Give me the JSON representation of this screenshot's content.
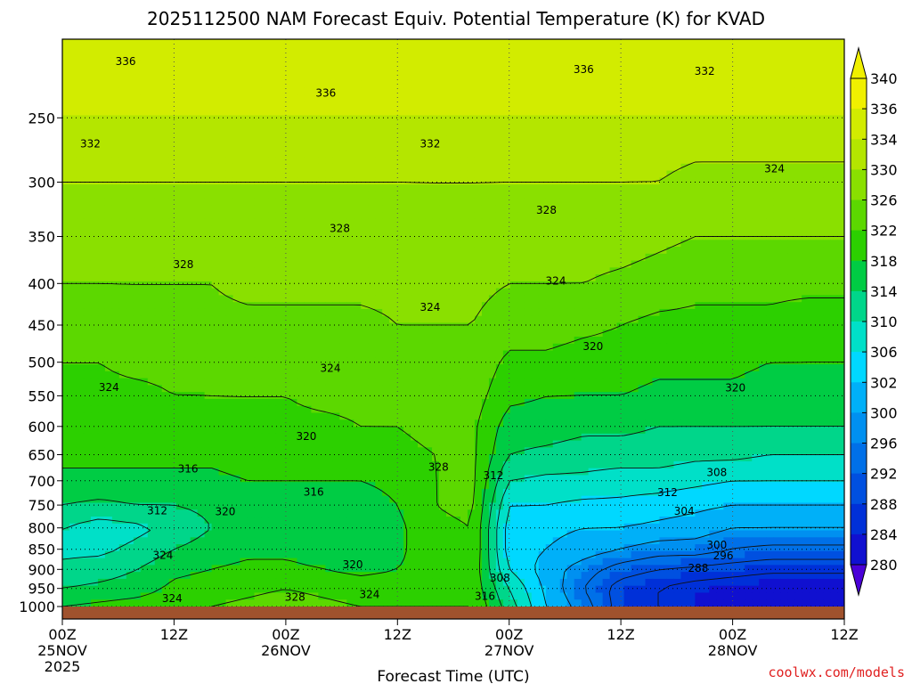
{
  "chart_data": {
    "type": "heatmap",
    "title": "2025112500 NAM Forecast Equiv. Potential Temperature (K) for KVAD",
    "xlabel": "Forecast Time (UTC)",
    "ylabel": "",
    "x_ticks": [
      {
        "h": 0,
        "line1": "00Z",
        "line2": "25NOV",
        "line3": "2025"
      },
      {
        "h": 12,
        "line1": "12Z",
        "line2": "",
        "line3": ""
      },
      {
        "h": 24,
        "line1": "00Z",
        "line2": "26NOV",
        "line3": ""
      },
      {
        "h": 36,
        "line1": "12Z",
        "line2": "",
        "line3": ""
      },
      {
        "h": 48,
        "line1": "00Z",
        "line2": "27NOV",
        "line3": ""
      },
      {
        "h": 60,
        "line1": "12Z",
        "line2": "",
        "line3": ""
      },
      {
        "h": 72,
        "line1": "00Z",
        "line2": "28NOV",
        "line3": ""
      },
      {
        "h": 84,
        "line1": "12Z",
        "line2": "",
        "line3": ""
      }
    ],
    "xlim_hours": [
      0,
      84
    ],
    "y_ticks": [
      "250",
      "300",
      "350",
      "400",
      "450",
      "500",
      "550",
      "600",
      "650",
      "700",
      "750",
      "800",
      "850",
      "900",
      "950",
      "1000"
    ],
    "ylim_hpa": [
      1000,
      200
    ],
    "y_scale": "log",
    "grid": true,
    "colorbar": {
      "ticks": [
        "340",
        "336",
        "334",
        "330",
        "326",
        "322",
        "318",
        "314",
        "310",
        "306",
        "302",
        "300",
        "296",
        "292",
        "288",
        "284",
        "280"
      ],
      "levels": [
        340,
        336,
        334,
        330,
        326,
        322,
        318,
        314,
        310,
        306,
        302,
        300,
        296,
        292,
        288,
        284,
        280
      ],
      "colors": [
        "#f0f000",
        "#d2ec00",
        "#b4e600",
        "#8ae000",
        "#5cd800",
        "#2cd000",
        "#00cc44",
        "#00d68a",
        "#00e0c8",
        "#00d8ff",
        "#00b0f8",
        "#0090f0",
        "#0070e8",
        "#0050e0",
        "#0030d8",
        "#1010d0",
        "#4a00d8"
      ]
    },
    "series": [
      {
        "h": 0,
        "values": [
          336,
          334,
          332,
          330,
          328,
          326,
          325,
          324,
          323,
          321,
          318,
          314,
          313,
          315,
          318,
          322
        ]
      },
      {
        "h": 4,
        "values": [
          336,
          334,
          332,
          330,
          328,
          326,
          325,
          324,
          323,
          321,
          317,
          312,
          313,
          316,
          319,
          323
        ]
      },
      {
        "h": 8,
        "values": [
          336,
          334,
          332,
          330,
          329,
          327,
          325,
          324,
          323,
          321,
          318,
          313,
          315,
          318,
          320,
          324
        ]
      },
      {
        "h": 12,
        "values": [
          336,
          334,
          332,
          330,
          329,
          327,
          326,
          324,
          323,
          321,
          318,
          315,
          318,
          321,
          323,
          325
        ]
      },
      {
        "h": 16,
        "values": [
          336,
          334,
          332,
          330,
          329,
          327,
          326,
          325,
          323,
          321,
          319,
          318,
          320,
          322,
          324,
          326
        ]
      },
      {
        "h": 20,
        "values": [
          336,
          334,
          332,
          331,
          329,
          328,
          326,
          325,
          324,
          322,
          320,
          319,
          321,
          323,
          325,
          327
        ]
      },
      {
        "h": 24,
        "values": [
          336,
          334,
          332,
          331,
          329,
          328,
          326,
          325,
          324,
          322,
          320,
          319,
          321,
          323,
          326,
          328
        ]
      },
      {
        "h": 28,
        "values": [
          336,
          334,
          332,
          331,
          329,
          328,
          327,
          325,
          324,
          322,
          320,
          319,
          320,
          322,
          325,
          327
        ]
      },
      {
        "h": 32,
        "values": [
          336,
          334,
          332,
          331,
          329,
          328,
          327,
          326,
          324,
          322,
          320,
          318,
          319,
          321,
          324,
          326
        ]
      },
      {
        "h": 36,
        "values": [
          336,
          334,
          332,
          331,
          330,
          329,
          328,
          326,
          325,
          323,
          322,
          321,
          321,
          322,
          324,
          326
        ]
      },
      {
        "h": 40,
        "values": [
          336,
          334,
          333,
          331,
          330,
          329,
          328,
          327,
          326,
          326,
          326,
          325,
          325,
          324,
          324,
          326
        ]
      },
      {
        "h": 44,
        "values": [
          336,
          334,
          333,
          331,
          330,
          329,
          328,
          327,
          327,
          327,
          327,
          326,
          326,
          325,
          325,
          326
        ]
      },
      {
        "h": 48,
        "values": [
          336,
          334,
          332,
          330,
          328,
          325,
          323,
          320,
          318,
          314,
          310,
          308,
          308,
          310,
          314,
          316
        ]
      },
      {
        "h": 52,
        "values": [
          336,
          334,
          332,
          330,
          328,
          325,
          322,
          320,
          317,
          313,
          310,
          307,
          306,
          304,
          305,
          306
        ]
      },
      {
        "h": 56,
        "values": [
          336,
          334,
          332,
          330,
          327,
          324,
          322,
          319,
          316,
          313,
          309,
          306,
          304,
          300,
          298,
          300
        ]
      },
      {
        "h": 60,
        "values": [
          336,
          334,
          332,
          329,
          326,
          324,
          322,
          319,
          316,
          312,
          309,
          306,
          302,
          296,
          292,
          292
        ]
      },
      {
        "h": 64,
        "values": [
          336,
          334,
          331,
          328,
          325,
          323,
          321,
          318,
          316,
          312,
          308,
          305,
          300,
          294,
          290,
          290
        ]
      },
      {
        "h": 68,
        "values": [
          336,
          333,
          330,
          327,
          325,
          323,
          321,
          318,
          315,
          311,
          307,
          304,
          300,
          293,
          288,
          288
        ]
      },
      {
        "h": 72,
        "values": [
          336,
          333,
          330,
          327,
          325,
          323,
          321,
          318,
          315,
          310,
          306,
          302,
          298,
          292,
          287,
          287
        ]
      },
      {
        "h": 76,
        "values": [
          336,
          333,
          330,
          327,
          325,
          322,
          320,
          318,
          314,
          310,
          306,
          302,
          297,
          291,
          286,
          286
        ]
      },
      {
        "h": 80,
        "values": [
          336,
          333,
          330,
          327,
          324,
          322,
          320,
          318,
          314,
          310,
          306,
          302,
          297,
          291,
          286,
          286
        ]
      },
      {
        "h": 84,
        "values": [
          336,
          333,
          330,
          327,
          324,
          322,
          320,
          318,
          314,
          310,
          306,
          302,
          297,
          291,
          286,
          286
        ]
      }
    ],
    "contour_labels": [
      {
        "text": "336",
        "h": 6.8,
        "p": 213
      },
      {
        "text": "336",
        "h": 56,
        "p": 218
      },
      {
        "text": "332",
        "h": 69,
        "p": 219
      },
      {
        "text": "336",
        "h": 28.3,
        "p": 233
      },
      {
        "text": "332",
        "h": 3,
        "p": 269
      },
      {
        "text": "332",
        "h": 39.5,
        "p": 269
      },
      {
        "text": "324",
        "h": 76.5,
        "p": 289
      },
      {
        "text": "328",
        "h": 52,
        "p": 325
      },
      {
        "text": "328",
        "h": 29.8,
        "p": 342
      },
      {
        "text": "328",
        "h": 13,
        "p": 379
      },
      {
        "text": "324",
        "h": 53,
        "p": 397
      },
      {
        "text": "324",
        "h": 39.5,
        "p": 428
      },
      {
        "text": "320",
        "h": 57,
        "p": 478
      },
      {
        "text": "324",
        "h": 28.8,
        "p": 509
      },
      {
        "text": "324",
        "h": 5,
        "p": 537
      },
      {
        "text": "320",
        "h": 72.3,
        "p": 538
      },
      {
        "text": "320",
        "h": 26.2,
        "p": 617
      },
      {
        "text": "328",
        "h": 40.4,
        "p": 673
      },
      {
        "text": "312",
        "h": 46.3,
        "p": 690
      },
      {
        "text": "316",
        "h": 13.5,
        "p": 677
      },
      {
        "text": "308",
        "h": 70.3,
        "p": 684
      },
      {
        "text": "312",
        "h": 65,
        "p": 724
      },
      {
        "text": "316",
        "h": 27,
        "p": 723
      },
      {
        "text": "312",
        "h": 10.2,
        "p": 762
      },
      {
        "text": "320",
        "h": 17.5,
        "p": 764
      },
      {
        "text": "304",
        "h": 66.8,
        "p": 763
      },
      {
        "text": "300",
        "h": 70.3,
        "p": 840
      },
      {
        "text": "296",
        "h": 71,
        "p": 866
      },
      {
        "text": "324",
        "h": 10.8,
        "p": 865
      },
      {
        "text": "320",
        "h": 31.2,
        "p": 888
      },
      {
        "text": "288",
        "h": 68.3,
        "p": 897
      },
      {
        "text": "308",
        "h": 47,
        "p": 922
      },
      {
        "text": "324",
        "h": 11.8,
        "p": 978
      },
      {
        "text": "328",
        "h": 25,
        "p": 974
      },
      {
        "text": "324",
        "h": 33,
        "p": 967
      },
      {
        "text": "316",
        "h": 45.4,
        "p": 971
      }
    ]
  },
  "credit": {
    "text": "coolwx.com/models",
    "color": "#e02020"
  },
  "ground_color": "#a0522d"
}
